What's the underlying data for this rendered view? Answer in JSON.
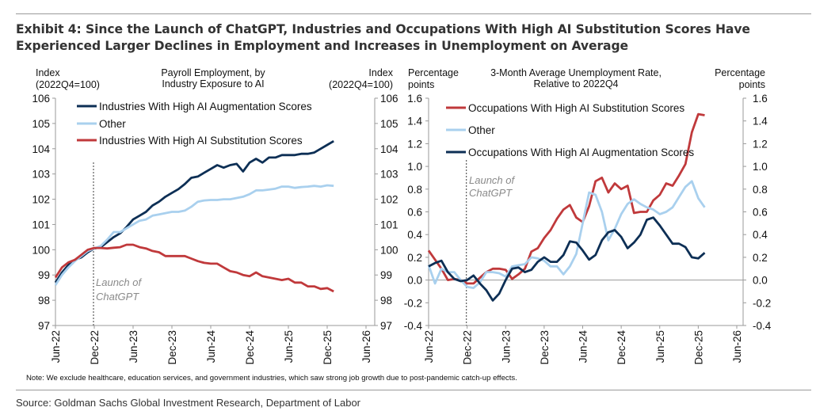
{
  "title": "Exhibit 4: Since the Launch of ChatGPT, Industries and Occupations With High AI Substitution Scores Have Experienced Larger Declines in Employment and Increases in Unemployment on Average",
  "note": "Note: We exclude healthcare, education services, and government industries, which saw strong job growth due to post-pandemic catch-up effects.",
  "source": "Source: Goldman Sachs Global Investment Research, Department of Labor",
  "colors": {
    "augmentation": "#0d2f55",
    "other": "#a9d0ee",
    "substitution": "#c0393b",
    "annotation": "#8a8a8a"
  },
  "chart_data": [
    {
      "type": "line",
      "title": [
        "Payroll Employment, by",
        "Industry Exposure to AI"
      ],
      "ylabel": [
        "Index",
        "(2022Q4=100)"
      ],
      "ylabel_right": [
        "Index",
        "(2022Q4=100)"
      ],
      "ylim": [
        97,
        106
      ],
      "yticks": [
        "97",
        "98",
        "99",
        "100",
        "101",
        "102",
        "103",
        "104",
        "105",
        "106"
      ],
      "xticks": [
        "Jun-22",
        "Dec-22",
        "Jun-23",
        "Dec-23",
        "Jun-24",
        "Dec-24",
        "Jun-25",
        "Dec-25",
        "Jun-26"
      ],
      "x_start": "Jun-22",
      "x_frequency": "monthly",
      "annotation": {
        "text": [
          "Launch of",
          "ChatGPT"
        ],
        "at": "Dec-22"
      },
      "legend": "top-left",
      "series": [
        {
          "name": "Industries With High AI Augmentation Scores",
          "color_key": "augmentation",
          "values": [
            98.7,
            99.1,
            99.4,
            99.6,
            99.7,
            99.9,
            100.05,
            100.1,
            100.3,
            100.5,
            100.65,
            100.9,
            101.2,
            101.35,
            101.5,
            101.75,
            101.9,
            102.1,
            102.25,
            102.4,
            102.6,
            102.85,
            102.9,
            103.05,
            103.2,
            103.35,
            103.25,
            103.35,
            103.4,
            103.1,
            103.45,
            103.6,
            103.45,
            103.65,
            103.65,
            103.75,
            103.75,
            103.75,
            103.8,
            103.8,
            103.85,
            104.0,
            104.15,
            104.3
          ]
        },
        {
          "name": "Other",
          "color_key": "other",
          "values": [
            98.6,
            99.0,
            99.3,
            99.55,
            99.75,
            99.95,
            100.05,
            100.15,
            100.4,
            100.7,
            100.7,
            100.85,
            101.0,
            101.15,
            101.2,
            101.35,
            101.4,
            101.45,
            101.5,
            101.5,
            101.55,
            101.7,
            101.9,
            101.95,
            101.97,
            101.97,
            102.0,
            102.0,
            102.05,
            102.1,
            102.2,
            102.35,
            102.35,
            102.38,
            102.42,
            102.5,
            102.5,
            102.45,
            102.48,
            102.5,
            102.53,
            102.5,
            102.55,
            102.53
          ]
        },
        {
          "name": "Industries With High AI Substitution Scores",
          "color_key": "substitution",
          "values": [
            98.9,
            99.3,
            99.5,
            99.6,
            99.8,
            100.0,
            100.07,
            100.07,
            100.05,
            100.08,
            100.1,
            100.2,
            100.2,
            100.1,
            100.05,
            99.95,
            99.9,
            99.75,
            99.75,
            99.75,
            99.75,
            99.65,
            99.55,
            99.48,
            99.45,
            99.45,
            99.3,
            99.15,
            99.1,
            99.0,
            98.95,
            99.1,
            98.95,
            98.9,
            98.85,
            98.8,
            98.85,
            98.7,
            98.7,
            98.55,
            98.55,
            98.45,
            98.48,
            98.35
          ]
        }
      ]
    },
    {
      "type": "line",
      "title": [
        "3-Month Average Unemployment Rate,",
        "Relative to 2022Q4"
      ],
      "ylabel": [
        "Percentage",
        "points"
      ],
      "ylabel_right": [
        "Percentage",
        "points"
      ],
      "ylim": [
        -0.4,
        1.6
      ],
      "yticks": [
        "-0.4",
        "-0.2",
        "0.0",
        "0.2",
        "0.4",
        "0.6",
        "0.8",
        "1.0",
        "1.2",
        "1.4",
        "1.6"
      ],
      "xticks": [
        "Jun-22",
        "Dec-22",
        "Jun-23",
        "Dec-23",
        "Jun-24",
        "Dec-24",
        "Jun-25",
        "Dec-25",
        "Jun-26"
      ],
      "x_start": "Jun-22",
      "x_frequency": "monthly",
      "annotation": {
        "text": [
          "Launch of",
          "ChatGPT"
        ],
        "at": "Dec-22"
      },
      "legend": "top-left",
      "series": [
        {
          "name": "Occupations With High AI Substitution Scores",
          "color_key": "substitution",
          "values": [
            0.26,
            0.18,
            0.1,
            0.0,
            0.01,
            0.0,
            -0.03,
            -0.03,
            0.02,
            0.07,
            0.1,
            0.1,
            0.09,
            0.01,
            0.05,
            0.1,
            0.25,
            0.28,
            0.37,
            0.44,
            0.54,
            0.62,
            0.66,
            0.55,
            0.51,
            0.65,
            0.87,
            0.9,
            0.77,
            0.85,
            0.8,
            0.83,
            0.59,
            0.6,
            0.6,
            0.7,
            0.75,
            0.85,
            0.83,
            0.92,
            1.02,
            1.3,
            1.46,
            1.45
          ]
        },
        {
          "name": "Other",
          "color_key": "other",
          "values": [
            0.13,
            -0.03,
            0.1,
            0.07,
            0.07,
            0.0,
            -0.06,
            -0.07,
            -0.02,
            0.07,
            0.07,
            0.06,
            0.03,
            0.12,
            0.13,
            0.14,
            0.2,
            0.19,
            0.17,
            0.12,
            0.12,
            0.05,
            0.12,
            0.23,
            0.5,
            0.77,
            0.75,
            0.6,
            0.35,
            0.45,
            0.58,
            0.67,
            0.71,
            0.67,
            0.64,
            0.62,
            0.58,
            0.6,
            0.64,
            0.73,
            0.82,
            0.87,
            0.72,
            0.64
          ]
        },
        {
          "name": "Occupations With High AI Augmentation Scores",
          "color_key": "augmentation",
          "values": [
            0.12,
            0.15,
            0.17,
            0.07,
            0.01,
            -0.01,
            0.0,
            0.04,
            -0.03,
            -0.09,
            -0.18,
            -0.12,
            0.0,
            0.1,
            0.11,
            0.07,
            0.09,
            0.16,
            0.2,
            0.16,
            0.16,
            0.22,
            0.34,
            0.33,
            0.26,
            0.18,
            0.22,
            0.35,
            0.42,
            0.44,
            0.38,
            0.28,
            0.33,
            0.4,
            0.53,
            0.55,
            0.48,
            0.4,
            0.32,
            0.32,
            0.29,
            0.2,
            0.19,
            0.24
          ]
        }
      ]
    }
  ]
}
